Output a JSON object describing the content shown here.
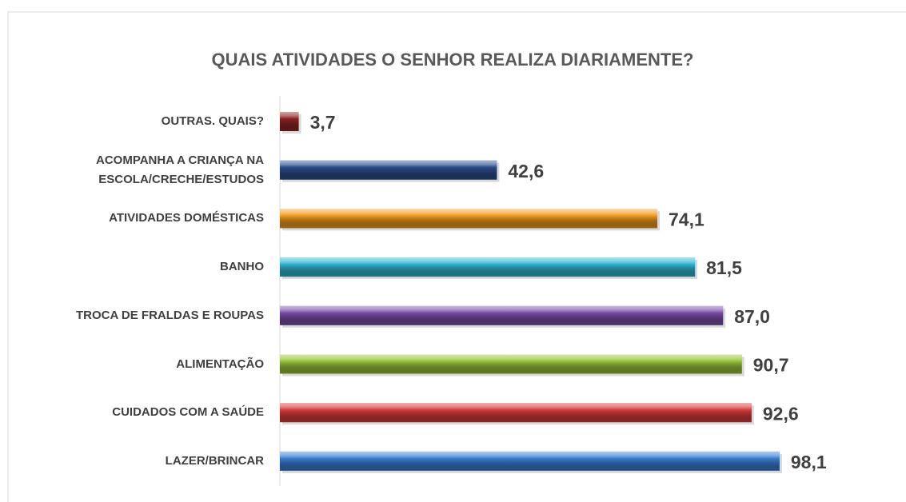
{
  "chart_data": {
    "type": "barh",
    "title": "QUAIS ATIVIDADES O SENHOR REALIZA DIARIAMENTE?",
    "categories": [
      "OUTRAS. QUAIS?",
      "ACOMPANHA A CRIANÇA NA ESCOLA/CRECHE/ESTUDOS",
      "ATIVIDADES DOMÉSTICAS",
      "BANHO",
      "TROCA DE FRALDAS E ROUPAS",
      "ALIMENTAÇÃO",
      "CUIDADOS COM A SAÚDE",
      "LAZER/BRINCAR"
    ],
    "values": [
      3.7,
      42.6,
      74.1,
      81.5,
      87.0,
      90.7,
      92.6,
      98.1
    ],
    "value_labels": [
      "3,7",
      "42,6",
      "74,1",
      "81,5",
      "87,0",
      "90,7",
      "92,6",
      "98,1"
    ],
    "colors": [
      "#8e2424",
      "#2b4f8c",
      "#f29a1c",
      "#2fb5d2",
      "#7a4da8",
      "#97c23a",
      "#d83c3c",
      "#3b7fd4"
    ],
    "xlim": [
      0,
      100
    ]
  }
}
